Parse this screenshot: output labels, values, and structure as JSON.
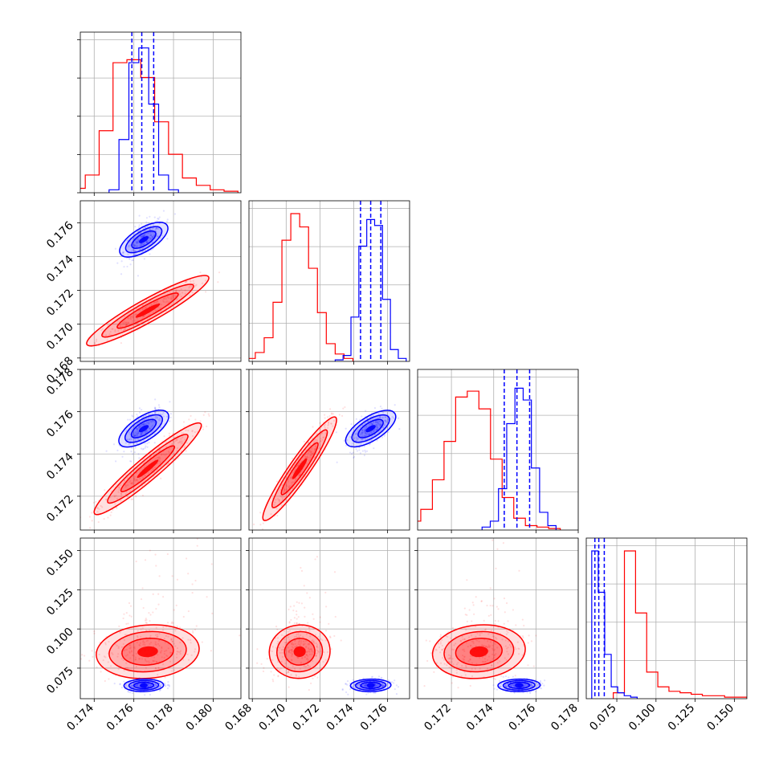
{
  "figure": {
    "type": "corner-plot",
    "colors": {
      "series_a": "#ff0000",
      "series_b": "#0000ff",
      "grid": "#b0b0b0"
    }
  },
  "chart_data": {
    "type": "corner",
    "grid": true,
    "n_params": 4,
    "axis_ranges": [
      [
        0.1733,
        0.1814
      ],
      [
        0.1678,
        0.1773
      ],
      [
        0.1704,
        0.178
      ],
      [
        0.0555,
        0.158
      ]
    ],
    "tick_values": [
      [
        0.174,
        0.176,
        0.178,
        0.18
      ],
      [
        0.168,
        0.17,
        0.172,
        0.174,
        0.176
      ],
      [
        0.172,
        0.174,
        0.176,
        0.178
      ],
      [
        0.075,
        0.1,
        0.125,
        0.15
      ]
    ],
    "tick_labels": [
      [
        "0.174",
        "0.176",
        "0.178",
        "0.180"
      ],
      [
        "0.168",
        "0.170",
        "0.172",
        "0.174",
        "0.176"
      ],
      [
        "0.172",
        "0.174",
        "0.176",
        "0.178"
      ],
      [
        "0.075",
        "0.100",
        "0.125",
        "0.150"
      ]
    ],
    "series": [
      {
        "color": "#ff0000",
        "means": [
          0.1767,
          0.1708,
          0.1733,
          0.0855
        ],
        "sds": [
          0.0013,
          0.0009,
          0.0011,
          0.0085
        ],
        "histograms": [
          [
            0.01,
            0.03,
            0.12,
            0.42,
            0.88,
            0.9,
            0.78,
            0.48,
            0.26,
            0.1,
            0.05,
            0.02,
            0.01
          ],
          [
            0.02,
            0.06,
            0.16,
            0.4,
            0.82,
            1.0,
            0.91,
            0.63,
            0.33,
            0.12,
            0.05,
            0.02
          ],
          [
            0.02,
            0.06,
            0.14,
            0.34,
            0.6,
            0.9,
            0.94,
            0.82,
            0.48,
            0.22,
            0.08,
            0.03,
            0.02,
            0.01
          ],
          [
            0.04,
            1.0,
            0.58,
            0.18,
            0.08,
            0.05,
            0.04,
            0.03,
            0.02,
            0.02,
            0.01,
            0.01
          ]
        ]
      },
      {
        "color": "#0000ff",
        "means": [
          0.1765,
          0.175,
          0.1752,
          0.064
        ],
        "sds": [
          0.0005,
          0.0006,
          0.0005,
          0.002
        ],
        "quantiles_dashed": [
          [
            0.1759,
            0.1764,
            0.177
          ],
          [
            0.1744,
            0.175,
            0.1756
          ],
          [
            0.1745,
            0.1751,
            0.1757
          ],
          [
            0.061,
            0.0635,
            0.067
          ]
        ],
        "histograms": [
          [
            0.02,
            0.36,
            0.88,
            0.98,
            0.6,
            0.12,
            0.02
          ],
          [
            0.01,
            0.04,
            0.3,
            0.78,
            0.96,
            0.92,
            0.42,
            0.08,
            0.02
          ],
          [
            0.02,
            0.06,
            0.28,
            0.72,
            0.96,
            0.88,
            0.42,
            0.12,
            0.03
          ],
          [
            1.0,
            0.72,
            0.3,
            0.08,
            0.04,
            0.02,
            0.01
          ]
        ]
      }
    ]
  }
}
